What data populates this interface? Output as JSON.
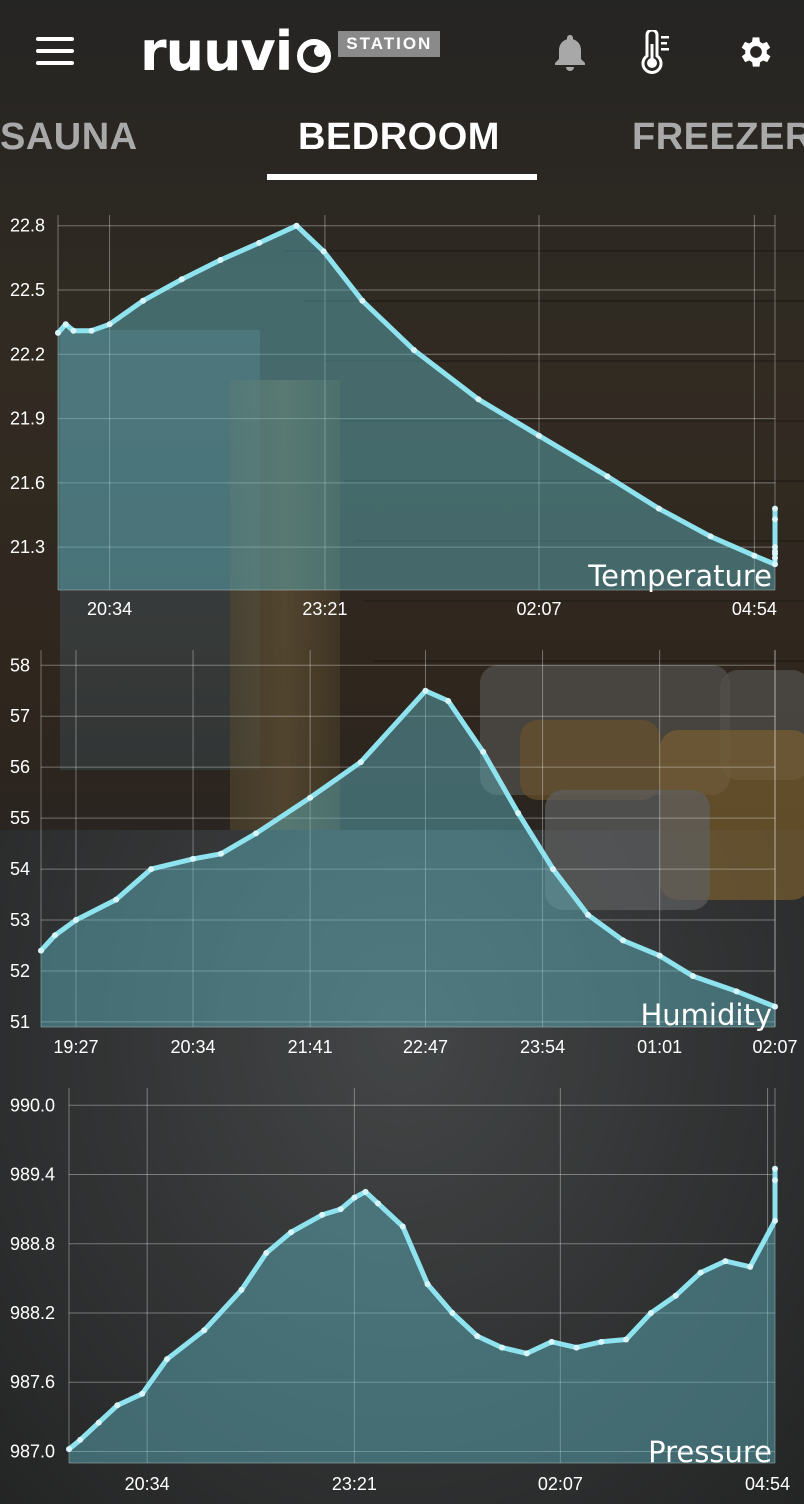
{
  "app": {
    "logo_text": "ruuvi",
    "logo_badge": "STATION"
  },
  "header": {
    "icons": [
      "menu-icon",
      "bell-icon",
      "thermometer-icon",
      "gear-icon"
    ]
  },
  "tabs": [
    {
      "label": "SAUNA",
      "active": false
    },
    {
      "label": "BEDROOM",
      "active": true
    },
    {
      "label": "FREEZER",
      "active": false
    }
  ],
  "colors": {
    "line": "#8ee3ef",
    "fill": "#5fb9c6"
  },
  "chart_data": [
    {
      "type": "area",
      "title": "Temperature",
      "yticks": [
        "22.8",
        "22.5",
        "22.2",
        "21.9",
        "21.6",
        "21.3"
      ],
      "ytick_values": [
        22.8,
        22.5,
        22.2,
        21.9,
        21.6,
        21.3
      ],
      "xticks": [
        "20:34",
        "23:21",
        "02:07",
        "04:54"
      ],
      "ylim": [
        21.1,
        22.85
      ],
      "x_range_minutes": [
        1194,
        1750
      ],
      "xtick_minutes": [
        1234,
        1401,
        1567,
        1734
      ],
      "points": [
        [
          1194,
          22.3
        ],
        [
          1200,
          22.34
        ],
        [
          1206,
          22.31
        ],
        [
          1220,
          22.31
        ],
        [
          1234,
          22.34
        ],
        [
          1260,
          22.45
        ],
        [
          1290,
          22.55
        ],
        [
          1320,
          22.64
        ],
        [
          1350,
          22.72
        ],
        [
          1379,
          22.8
        ],
        [
          1400,
          22.68
        ],
        [
          1430,
          22.45
        ],
        [
          1470,
          22.22
        ],
        [
          1520,
          21.99
        ],
        [
          1567,
          21.82
        ],
        [
          1620,
          21.63
        ],
        [
          1660,
          21.48
        ],
        [
          1700,
          21.35
        ],
        [
          1734,
          21.26
        ],
        [
          1755,
          21.22
        ],
        [
          1775,
          21.25
        ],
        [
          1790,
          21.28
        ],
        [
          1815,
          21.27
        ],
        [
          1820,
          21.3
        ],
        [
          1822,
          21.43
        ],
        [
          1830,
          21.48
        ]
      ]
    },
    {
      "type": "area",
      "title": "Humidity",
      "yticks": [
        "58",
        "57",
        "56",
        "55",
        "54",
        "53",
        "52",
        "51"
      ],
      "ytick_values": [
        58,
        57,
        56,
        55,
        54,
        53,
        52,
        51
      ],
      "xticks": [
        "19:27",
        "20:34",
        "21:41",
        "22:47",
        "23:54",
        "01:01",
        "02:07"
      ],
      "ylim": [
        50.9,
        58.3
      ],
      "x_range_minutes": [
        1147,
        1567
      ],
      "xtick_minutes": [
        1167,
        1234,
        1301,
        1367,
        1434,
        1501,
        1567
      ],
      "points": [
        [
          1147,
          52.4
        ],
        [
          1155,
          52.7
        ],
        [
          1167,
          53.0
        ],
        [
          1190,
          53.4
        ],
        [
          1210,
          54.0
        ],
        [
          1234,
          54.2
        ],
        [
          1250,
          54.3
        ],
        [
          1270,
          54.7
        ],
        [
          1301,
          55.4
        ],
        [
          1330,
          56.1
        ],
        [
          1367,
          57.5
        ],
        [
          1380,
          57.3
        ],
        [
          1400,
          56.3
        ],
        [
          1420,
          55.1
        ],
        [
          1440,
          54.0
        ],
        [
          1460,
          53.1
        ],
        [
          1480,
          52.6
        ],
        [
          1501,
          52.3
        ],
        [
          1520,
          51.9
        ],
        [
          1545,
          51.6
        ],
        [
          1567,
          51.3
        ]
      ]
    },
    {
      "type": "area",
      "title": "Pressure",
      "yticks": [
        "990.0",
        "989.4",
        "988.8",
        "988.2",
        "987.6",
        "987.0"
      ],
      "ytick_values": [
        990.0,
        989.4,
        988.8,
        988.2,
        987.6,
        987.0
      ],
      "xticks": [
        "20:34",
        "23:21",
        "02:07",
        "04:54"
      ],
      "ylim": [
        986.9,
        990.15
      ],
      "x_range_minutes": [
        1171,
        1740
      ],
      "xtick_minutes": [
        1234,
        1401,
        1567,
        1734
      ],
      "points": [
        [
          1171,
          987.02
        ],
        [
          1180,
          987.1
        ],
        [
          1195,
          987.25
        ],
        [
          1210,
          987.4
        ],
        [
          1230,
          987.5
        ],
        [
          1250,
          987.8
        ],
        [
          1280,
          988.05
        ],
        [
          1310,
          988.4
        ],
        [
          1330,
          988.72
        ],
        [
          1350,
          988.9
        ],
        [
          1375,
          989.05
        ],
        [
          1390,
          989.1
        ],
        [
          1401,
          989.2
        ],
        [
          1410,
          989.25
        ],
        [
          1420,
          989.15
        ],
        [
          1440,
          988.95
        ],
        [
          1460,
          988.45
        ],
        [
          1480,
          988.2
        ],
        [
          1500,
          988.0
        ],
        [
          1520,
          987.9
        ],
        [
          1540,
          987.85
        ],
        [
          1560,
          987.95
        ],
        [
          1580,
          987.9
        ],
        [
          1600,
          987.95
        ],
        [
          1620,
          987.97
        ],
        [
          1640,
          988.2
        ],
        [
          1660,
          988.35
        ],
        [
          1680,
          988.55
        ],
        [
          1700,
          988.65
        ],
        [
          1720,
          988.6
        ],
        [
          1740,
          989.0
        ],
        [
          1760,
          989.35
        ],
        [
          1790,
          989.45
        ]
      ]
    }
  ]
}
